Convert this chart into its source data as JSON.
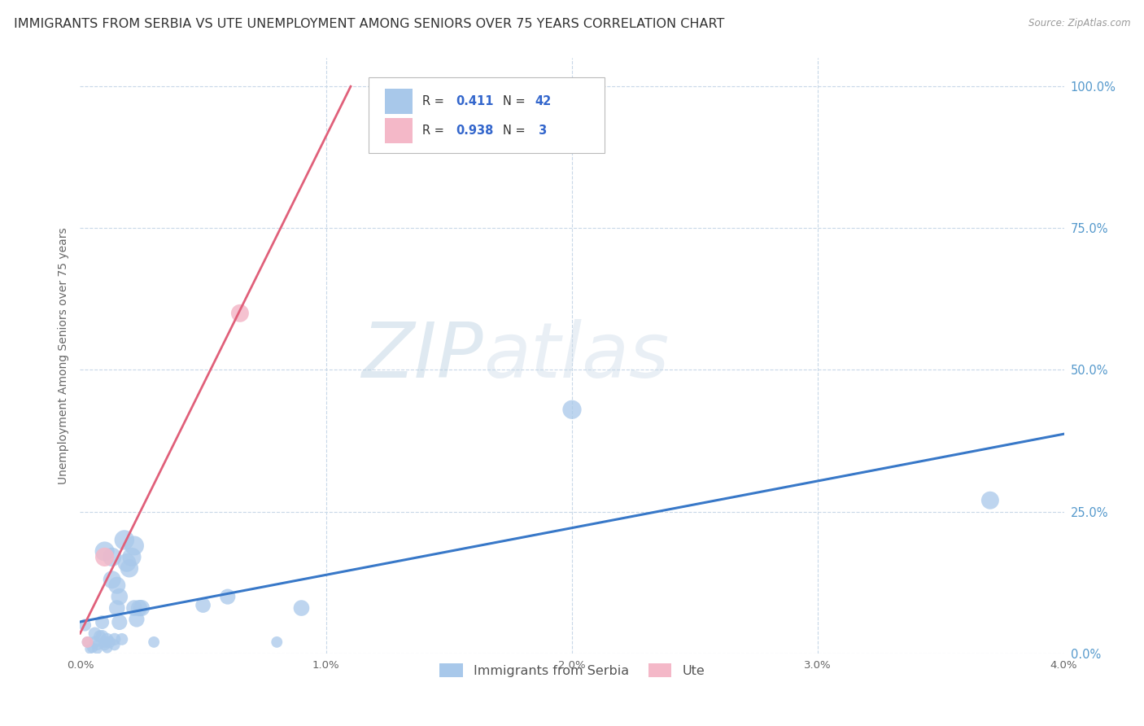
{
  "title": "IMMIGRANTS FROM SERBIA VS UTE UNEMPLOYMENT AMONG SENIORS OVER 75 YEARS CORRELATION CHART",
  "source": "Source: ZipAtlas.com",
  "ylabel": "Unemployment Among Seniors over 75 years",
  "xlim": [
    0.0,
    0.04
  ],
  "ylim": [
    0.0,
    1.05
  ],
  "xticks": [
    0.0,
    0.01,
    0.02,
    0.03,
    0.04
  ],
  "xtick_labels": [
    "0.0%",
    "1.0%",
    "2.0%",
    "3.0%",
    "4.0%"
  ],
  "yticks": [
    0.0,
    0.25,
    0.5,
    0.75,
    1.0
  ],
  "ytick_labels": [
    "0.0%",
    "25.0%",
    "50.0%",
    "75.0%",
    "100.0%"
  ],
  "serbia_R": 0.411,
  "serbia_N": 42,
  "ute_R": 0.938,
  "ute_N": 3,
  "serbia_color": "#a8c8ea",
  "ute_color": "#f4b8c8",
  "serbia_line_color": "#3878c8",
  "ute_line_color": "#e0607a",
  "legend_r_color": "#3366cc",
  "watermark_zip": "ZIP",
  "watermark_atlas": "atlas",
  "serbia_points": [
    [
      0.0002,
      0.05
    ],
    [
      0.0003,
      0.02
    ],
    [
      0.0004,
      0.008
    ],
    [
      0.0005,
      0.01
    ],
    [
      0.0006,
      0.035
    ],
    [
      0.0006,
      0.02
    ],
    [
      0.0007,
      0.015
    ],
    [
      0.0007,
      0.008
    ],
    [
      0.0008,
      0.03
    ],
    [
      0.0009,
      0.055
    ],
    [
      0.0009,
      0.03
    ],
    [
      0.001,
      0.18
    ],
    [
      0.001,
      0.02
    ],
    [
      0.001,
      0.015
    ],
    [
      0.0011,
      0.025
    ],
    [
      0.0011,
      0.01
    ],
    [
      0.0012,
      0.02
    ],
    [
      0.0013,
      0.17
    ],
    [
      0.0013,
      0.13
    ],
    [
      0.0014,
      0.025
    ],
    [
      0.0014,
      0.015
    ],
    [
      0.0015,
      0.12
    ],
    [
      0.0015,
      0.08
    ],
    [
      0.0016,
      0.1
    ],
    [
      0.0016,
      0.055
    ],
    [
      0.0017,
      0.025
    ],
    [
      0.0018,
      0.2
    ],
    [
      0.0019,
      0.16
    ],
    [
      0.002,
      0.15
    ],
    [
      0.0021,
      0.17
    ],
    [
      0.0022,
      0.19
    ],
    [
      0.0022,
      0.08
    ],
    [
      0.0023,
      0.06
    ],
    [
      0.0024,
      0.08
    ],
    [
      0.0025,
      0.08
    ],
    [
      0.003,
      0.02
    ],
    [
      0.005,
      0.085
    ],
    [
      0.006,
      0.1
    ],
    [
      0.008,
      0.02
    ],
    [
      0.009,
      0.08
    ],
    [
      0.02,
      0.43
    ],
    [
      0.037,
      0.27
    ]
  ],
  "ute_points": [
    [
      0.0003,
      0.02
    ],
    [
      0.001,
      0.17
    ],
    [
      0.0065,
      0.6
    ]
  ],
  "serbia_sizes": [
    120,
    100,
    80,
    90,
    130,
    110,
    95,
    85,
    120,
    150,
    130,
    300,
    110,
    100,
    120,
    95,
    110,
    280,
    250,
    120,
    100,
    230,
    200,
    220,
    190,
    115,
    310,
    270,
    260,
    280,
    300,
    200,
    190,
    210,
    210,
    100,
    180,
    190,
    100,
    200,
    280,
    250
  ],
  "ute_sizes": [
    100,
    280,
    250
  ],
  "background_color": "#ffffff",
  "grid_color": "#c8d8e8",
  "title_fontsize": 11.5,
  "label_fontsize": 10,
  "tick_fontsize": 9.5
}
